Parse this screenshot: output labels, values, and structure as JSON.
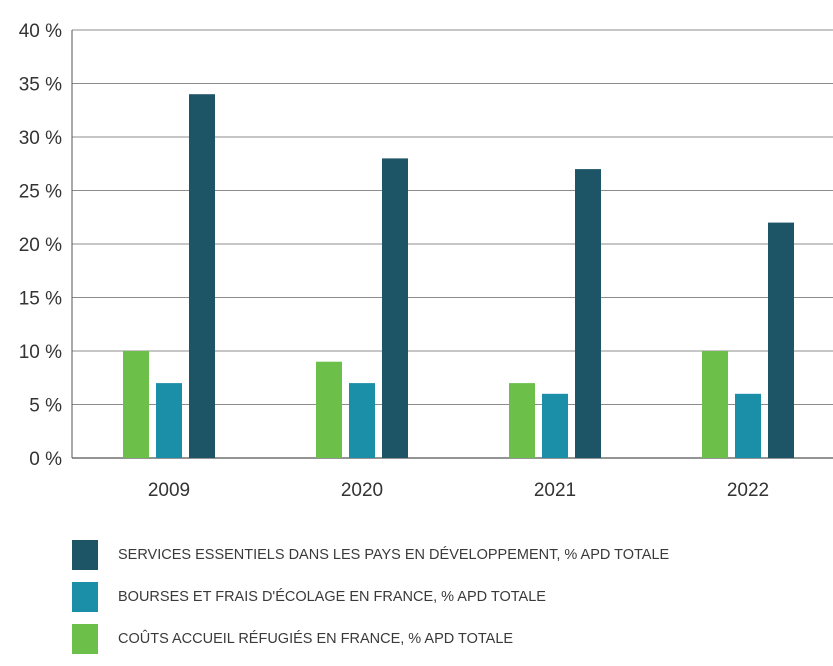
{
  "chart_data": {
    "type": "bar",
    "categories": [
      "2009",
      "2020",
      "2021",
      "2022"
    ],
    "series": [
      {
        "name": "COÛTS ACCUEIL RÉFUGIÉS EN FRANCE, % APD TOTALE",
        "color": "#6cc04a",
        "values": [
          10,
          9,
          7,
          10
        ]
      },
      {
        "name": "BOURSES ET FRAIS D'ÉCOLAGE EN FRANCE, % APD TOTALE",
        "color": "#1b8ea8",
        "values": [
          7,
          7,
          6,
          6
        ]
      },
      {
        "name": "SERVICES ESSENTIELS DANS LES PAYS EN DÉVELOPPEMENT, % APD TOTALE",
        "color": "#1d5567",
        "values": [
          34,
          28,
          27,
          22
        ]
      }
    ],
    "ylim": [
      0,
      40
    ],
    "yticks": [
      "0 %",
      "5 %",
      "10 %",
      "15 %",
      "20 %",
      "25 %",
      "30 %",
      "35 %",
      "40 %"
    ],
    "grid": true,
    "legend_position": "bottom"
  },
  "legend": [
    {
      "label": "SERVICES ESSENTIELS DANS LES PAYS EN DÉVELOPPEMENT, % APD TOTALE",
      "color": "#1d5567"
    },
    {
      "label": "BOURSES ET FRAIS D'ÉCOLAGE EN FRANCE, % APD TOTALE",
      "color": "#1b8ea8"
    },
    {
      "label": "COÛTS ACCUEIL RÉFUGIÉS EN FRANCE, % APD TOTALE",
      "color": "#6cc04a"
    }
  ]
}
